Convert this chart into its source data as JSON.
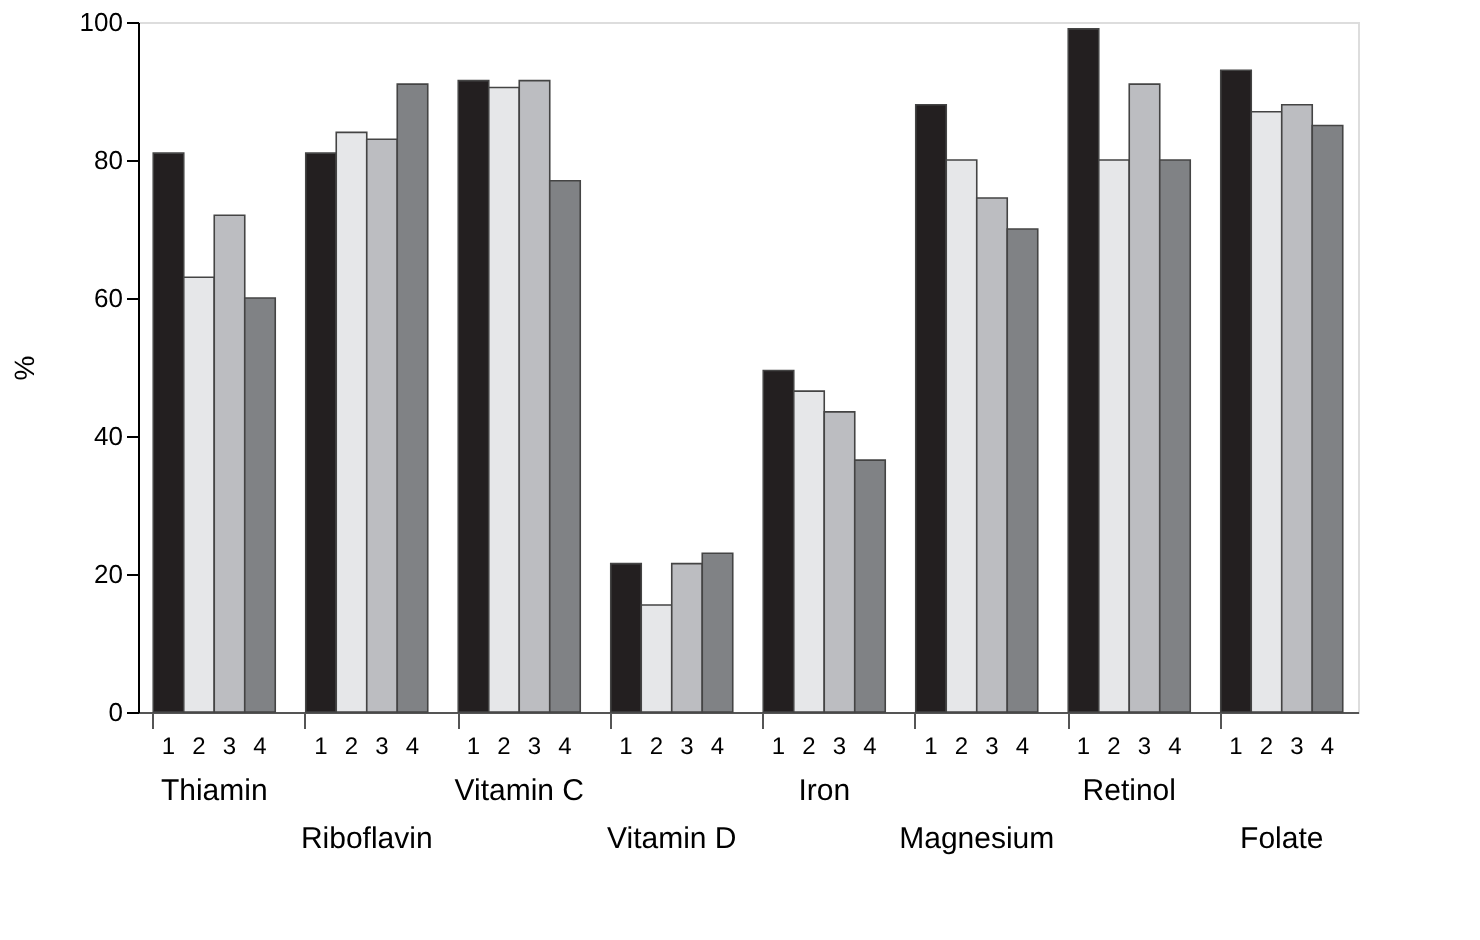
{
  "chart_data": {
    "type": "bar",
    "ylabel": "%",
    "categories": [
      "Thiamin",
      "Riboflavin",
      "Vitamin C",
      "Vitamin D",
      "Iron",
      "Magnesium",
      "Retinol",
      "Folate"
    ],
    "series": [
      {
        "name": "1",
        "color": "#231f20",
        "values": [
          81,
          81,
          91.5,
          21.5,
          49.5,
          88,
          99,
          93
        ]
      },
      {
        "name": "2",
        "color": "#e6e7e9",
        "values": [
          63,
          84,
          90.5,
          15.5,
          46.5,
          80,
          80,
          87
        ]
      },
      {
        "name": "3",
        "color": "#bcbdc1",
        "values": [
          72,
          83,
          91.5,
          21.5,
          43.5,
          74.5,
          91,
          88
        ]
      },
      {
        "name": "4",
        "color": "#808285",
        "values": [
          60,
          91,
          77,
          23,
          36.5,
          70,
          80,
          85
        ]
      }
    ],
    "ylim": [
      0,
      100
    ],
    "yticks": [
      0,
      20,
      40,
      60,
      80,
      100
    ],
    "grid": false,
    "legend": false
  }
}
